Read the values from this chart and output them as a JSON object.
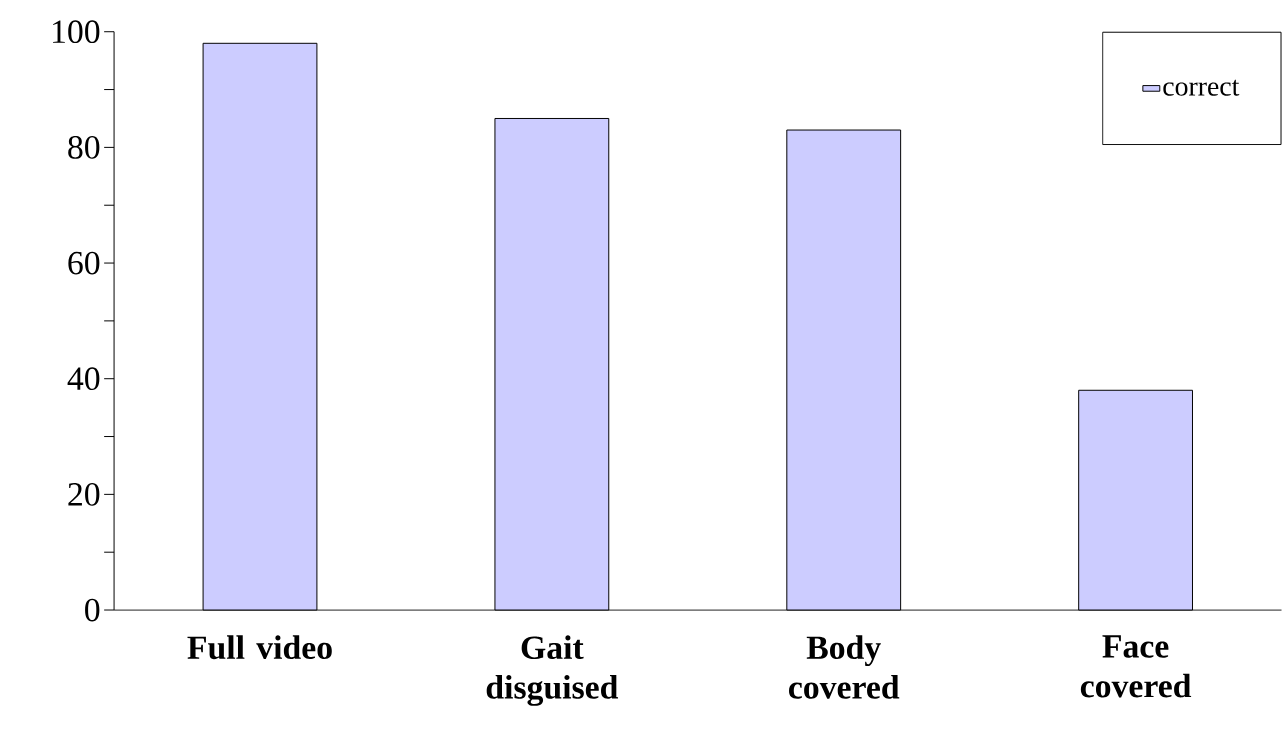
{
  "chart_data": {
    "type": "bar",
    "categories": [
      "Full video",
      "Gait disguised",
      "Body covered",
      "Face covered"
    ],
    "series": [
      {
        "name": "correct",
        "color": "#ccccff",
        "values": [
          98,
          85,
          83,
          38
        ]
      }
    ],
    "ylim": [
      0,
      100
    ],
    "yticks": [
      0,
      {
        "value": 10,
        "label": null
      },
      20,
      {
        "value": 30,
        "label": null
      },
      40,
      {
        "value": 50,
        "label": null
      },
      60,
      {
        "value": 70,
        "label": null
      },
      80,
      {
        "value": 90,
        "label": null
      },
      100
    ],
    "legend": "top right"
  }
}
